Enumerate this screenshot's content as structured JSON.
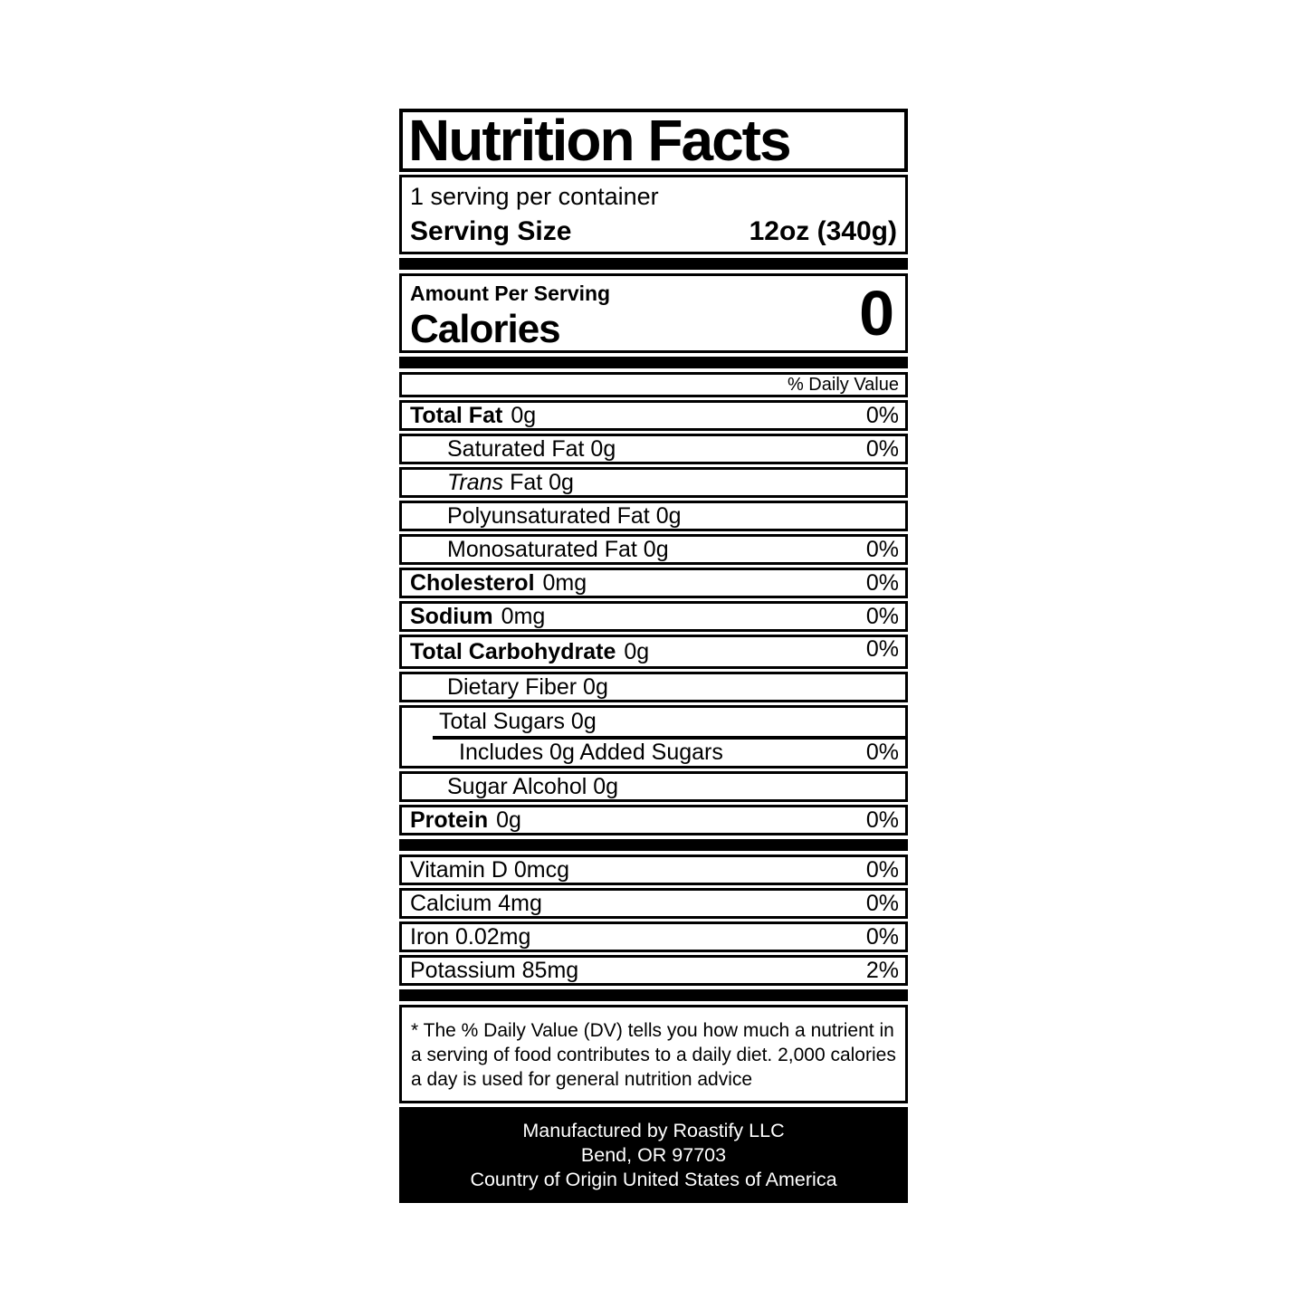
{
  "label": {
    "title": "Nutrition Facts",
    "servings_per_container": "1 serving per container",
    "serving_size_label": "Serving Size",
    "serving_size_value": "12oz (340g)",
    "amount_per_serving": "Amount Per Serving",
    "calories_label": "Calories",
    "calories_value": "0",
    "daily_value_header": "% Daily Value",
    "nutrient_rows": [
      {
        "bold": "Total Fat",
        "text": "0g",
        "dv": "0%"
      },
      {
        "text": "Saturated Fat 0g",
        "dv": "0%"
      },
      {
        "italic": "Trans",
        "text": "Fat 0g"
      },
      {
        "text": "Polyunsaturated Fat 0g"
      },
      {
        "text": "Monosaturated Fat 0g",
        "dv": "0%"
      },
      {
        "bold": "Cholesterol",
        "text": "0mg",
        "dv": "0%"
      },
      {
        "bold": "Sodium",
        "text": "0mg",
        "dv": "0%"
      },
      {
        "bold": "Total Carbohydrate",
        "text": "0g",
        "dv": "0%"
      },
      {
        "text": "Dietary Fiber 0g"
      },
      {
        "text": "Total Sugars 0g"
      },
      {
        "text": "Includes 0g Added Sugars",
        "dv": "0%"
      },
      {
        "text": "Sugar Alcohol 0g"
      },
      {
        "bold": "Protein",
        "text": "0g",
        "dv": "0%"
      }
    ],
    "vitamin_rows": [
      {
        "text": "Vitamin D 0mcg",
        "dv": "0%"
      },
      {
        "text": "Calcium 4mg",
        "dv": "0%"
      },
      {
        "text": "Iron 0.02mg",
        "dv": "0%"
      },
      {
        "text": "Potassium 85mg",
        "dv": "2%"
      }
    ],
    "footnote_lines": [
      "* The % Daily Value (DV) tells you how much a nutrient in",
      "a serving of food contributes to a daily diet. 2,000 calories",
      "a day is used for general nutrition advice"
    ],
    "manufacturer_lines": [
      "Manufactured by Roastify LLC",
      "Bend, OR 97703",
      "Country of Origin United States of America"
    ]
  },
  "colors": {
    "ink": "#000000",
    "paper": "#ffffff"
  }
}
